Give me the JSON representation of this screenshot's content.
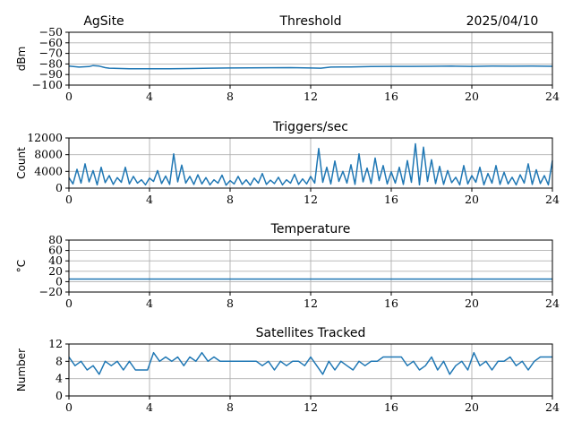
{
  "header": {
    "site": "AgSite",
    "date": "2025/04/10"
  },
  "chart_data": [
    {
      "id": "threshold",
      "type": "line",
      "title": "Threshold",
      "ylabel": "dBm",
      "xlabel": "",
      "xlim": [
        0,
        24
      ],
      "ylim": [
        -100,
        -50
      ],
      "xticks": [
        0,
        4,
        8,
        12,
        16,
        20,
        24
      ],
      "yticks": [
        -100,
        -90,
        -80,
        -70,
        -60,
        -50
      ],
      "grid": true,
      "color": "#1f77b4",
      "series": [
        {
          "x": [
            0,
            0.5,
            1,
            1.2,
            1.5,
            1.8,
            2,
            3,
            4,
            5,
            6,
            7,
            8,
            9,
            10,
            11,
            12,
            12.5,
            13,
            14,
            15,
            16,
            17,
            18,
            19,
            20,
            21,
            22,
            23,
            24
          ],
          "values": [
            -82,
            -83,
            -82.5,
            -81.5,
            -82,
            -83.5,
            -84,
            -84.5,
            -84.5,
            -84.5,
            -84.3,
            -84,
            -83.8,
            -83.7,
            -83.6,
            -83.5,
            -83.8,
            -84,
            -83,
            -82.8,
            -82.5,
            -82.3,
            -82.3,
            -82.2,
            -82,
            -82.3,
            -82,
            -82.1,
            -82,
            -82.2
          ]
        }
      ]
    },
    {
      "id": "triggers",
      "type": "line",
      "title": "Triggers/sec",
      "ylabel": "Count",
      "xlabel": "",
      "xlim": [
        0,
        24
      ],
      "ylim": [
        0,
        12000
      ],
      "xticks": [
        0,
        4,
        8,
        12,
        16,
        20,
        24
      ],
      "yticks": [
        0,
        4000,
        8000,
        12000
      ],
      "grid": true,
      "color": "#1f77b4",
      "series": [
        {
          "x": [
            0,
            0.2,
            0.4,
            0.6,
            0.8,
            1,
            1.2,
            1.4,
            1.6,
            1.8,
            2,
            2.2,
            2.4,
            2.6,
            2.8,
            3,
            3.2,
            3.4,
            3.6,
            3.8,
            4,
            4.2,
            4.4,
            4.6,
            4.8,
            5,
            5.2,
            5.4,
            5.6,
            5.8,
            6,
            6.2,
            6.4,
            6.6,
            6.8,
            7,
            7.2,
            7.4,
            7.6,
            7.8,
            8,
            8.2,
            8.4,
            8.6,
            8.8,
            9,
            9.2,
            9.4,
            9.6,
            9.8,
            10,
            10.2,
            10.4,
            10.6,
            10.8,
            11,
            11.2,
            11.4,
            11.6,
            11.8,
            12,
            12.2,
            12.4,
            12.6,
            12.8,
            13,
            13.2,
            13.4,
            13.6,
            13.8,
            14,
            14.2,
            14.4,
            14.6,
            14.8,
            15,
            15.2,
            15.4,
            15.6,
            15.8,
            16,
            16.2,
            16.4,
            16.6,
            16.8,
            17,
            17.2,
            17.4,
            17.6,
            17.8,
            18,
            18.2,
            18.4,
            18.6,
            18.8,
            19,
            19.2,
            19.4,
            19.6,
            19.8,
            20,
            20.2,
            20.4,
            20.6,
            20.8,
            21,
            21.2,
            21.4,
            21.6,
            21.8,
            22,
            22.2,
            22.4,
            22.6,
            22.8,
            23,
            23.2,
            23.4,
            23.6,
            23.8,
            24
          ],
          "values": [
            2500,
            1000,
            4500,
            1200,
            5800,
            1500,
            4200,
            800,
            5000,
            1300,
            3000,
            900,
            2500,
            1400,
            5000,
            1000,
            2800,
            1200,
            2000,
            800,
            2400,
            1600,
            4200,
            1100,
            2900,
            900,
            8200,
            1500,
            5500,
            1200,
            2800,
            900,
            3200,
            1000,
            2500,
            800,
            2000,
            1200,
            3100,
            700,
            1800,
            1000,
            2800,
            900,
            2000,
            700,
            2400,
            1200,
            3500,
            900,
            1900,
            1100,
            2600,
            800,
            2000,
            1200,
            3300,
            900,
            2200,
            1000,
            2800,
            1200,
            9500,
            1400,
            5000,
            1000,
            6500,
            1600,
            4000,
            1200,
            5600,
            900,
            8200,
            1500,
            4800,
            1100,
            7200,
            1800,
            5400,
            1000,
            3900,
            1200,
            5000,
            900,
            6600,
            1400,
            10600,
            800,
            9800,
            1600,
            6800,
            1100,
            5200,
            900,
            4200,
            1300,
            2600,
            800,
            5400,
            1000,
            3000,
            1400,
            5000,
            800,
            3500,
            1200,
            5400,
            900,
            3800,
            1000,
            2600,
            800,
            3200,
            1200,
            5800,
            900,
            4400,
            1100,
            3000,
            800,
            6600
          ]
        }
      ]
    },
    {
      "id": "temperature",
      "type": "line",
      "title": "Temperature",
      "ylabel": "°C",
      "xlabel": "",
      "xlim": [
        0,
        24
      ],
      "ylim": [
        -20,
        80
      ],
      "xticks": [
        0,
        4,
        8,
        12,
        16,
        20,
        24
      ],
      "yticks": [
        -20,
        0,
        20,
        40,
        60,
        80
      ],
      "grid": true,
      "color": "#1f77b4",
      "series": [
        {
          "x": [
            0,
            24
          ],
          "values": [
            5,
            5
          ]
        }
      ]
    },
    {
      "id": "satellites",
      "type": "line",
      "title": "Satellites Tracked",
      "ylabel": "Number",
      "xlabel": "",
      "xlim": [
        0,
        24
      ],
      "ylim": [
        0,
        12
      ],
      "xticks": [
        0,
        4,
        8,
        12,
        16,
        20,
        24
      ],
      "yticks": [
        0,
        4,
        8,
        12
      ],
      "grid": true,
      "color": "#1f77b4",
      "series": [
        {
          "x": [
            0,
            0.3,
            0.6,
            0.9,
            1.2,
            1.5,
            1.8,
            2.1,
            2.4,
            2.7,
            3,
            3.3,
            3.6,
            3.9,
            4.2,
            4.5,
            4.8,
            5.1,
            5.4,
            5.7,
            6,
            6.3,
            6.6,
            6.9,
            7.2,
            7.5,
            7.8,
            8.1,
            8.4,
            8.7,
            9,
            9.3,
            9.6,
            9.9,
            10.2,
            10.5,
            10.8,
            11.1,
            11.4,
            11.7,
            12,
            12.3,
            12.6,
            12.9,
            13.2,
            13.5,
            13.8,
            14.1,
            14.4,
            14.7,
            15,
            15.3,
            15.6,
            15.9,
            16.2,
            16.5,
            16.8,
            17.1,
            17.4,
            17.7,
            18,
            18.3,
            18.6,
            18.9,
            19.2,
            19.5,
            19.8,
            20.1,
            20.4,
            20.7,
            21,
            21.3,
            21.6,
            21.9,
            22.2,
            22.5,
            22.8,
            23.1,
            23.4,
            23.7,
            24
          ],
          "values": [
            9,
            7,
            8,
            6,
            7,
            5,
            8,
            7,
            8,
            6,
            8,
            6,
            6,
            6,
            10,
            8,
            9,
            8,
            9,
            7,
            9,
            8,
            10,
            8,
            9,
            8,
            8,
            8,
            8,
            8,
            8,
            8,
            7,
            8,
            6,
            8,
            7,
            8,
            8,
            7,
            9,
            7,
            5,
            8,
            6,
            8,
            7,
            6,
            8,
            7,
            8,
            8,
            9,
            9,
            9,
            9,
            7,
            8,
            6,
            7,
            9,
            6,
            8,
            5,
            7,
            8,
            6,
            10,
            7,
            8,
            6,
            8,
            8,
            9,
            7,
            8,
            6,
            8,
            9,
            9,
            9
          ]
        }
      ]
    }
  ]
}
